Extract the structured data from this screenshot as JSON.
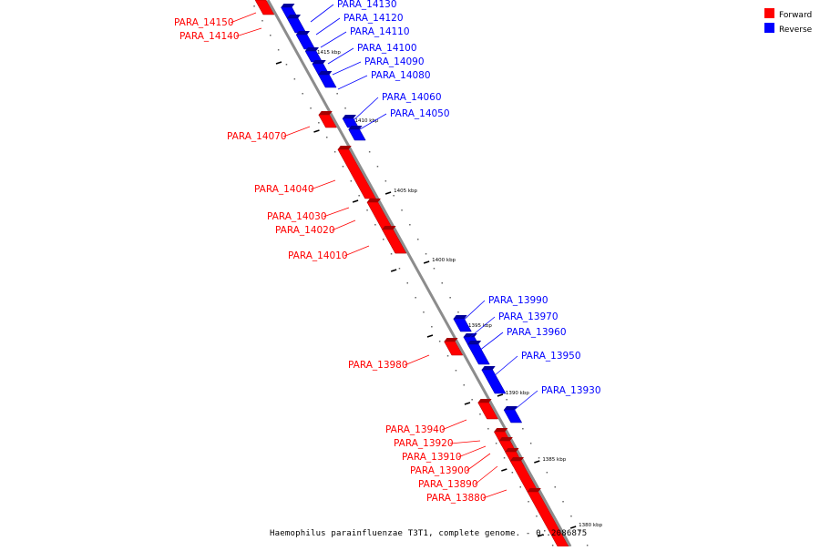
{
  "legend": {
    "forward": {
      "label": "Forward",
      "color": "#ff0000"
    },
    "reverse": {
      "label": "Reverse",
      "color": "#0000ff"
    }
  },
  "caption": "Haemophilus parainfluenzae T3T1, complete genome. - 0..2086875",
  "ticks": [
    {
      "label": "1415 kbp",
      "kbp": 1415
    },
    {
      "label": "1410 kbp",
      "kbp": 1410
    },
    {
      "label": "1405 kbp",
      "kbp": 1405
    },
    {
      "label": "1400 kbp",
      "kbp": 1400
    },
    {
      "label": "1395 kbp",
      "kbp": 1395
    },
    {
      "label": "1390 kbp",
      "kbp": 1390
    },
    {
      "label": "1385 kbp",
      "kbp": 1385
    },
    {
      "label": "1380 kbp",
      "kbp": 1380
    }
  ],
  "genes": [
    {
      "name": "PARA_14150",
      "strand": "forward"
    },
    {
      "name": "PARA_14140",
      "strand": "forward"
    },
    {
      "name": "PARA_14130",
      "strand": "reverse"
    },
    {
      "name": "PARA_14120",
      "strand": "reverse"
    },
    {
      "name": "PARA_14110",
      "strand": "reverse"
    },
    {
      "name": "PARA_14100",
      "strand": "reverse"
    },
    {
      "name": "PARA_14090",
      "strand": "reverse"
    },
    {
      "name": "PARA_14080",
      "strand": "reverse"
    },
    {
      "name": "PARA_14060",
      "strand": "reverse"
    },
    {
      "name": "PARA_14050",
      "strand": "reverse"
    },
    {
      "name": "PARA_14070",
      "strand": "forward"
    },
    {
      "name": "PARA_14040",
      "strand": "forward"
    },
    {
      "name": "PARA_14030",
      "strand": "forward"
    },
    {
      "name": "PARA_14020",
      "strand": "forward"
    },
    {
      "name": "PARA_14010",
      "strand": "forward"
    },
    {
      "name": "PARA_13990",
      "strand": "reverse"
    },
    {
      "name": "PARA_13970",
      "strand": "reverse"
    },
    {
      "name": "PARA_13960",
      "strand": "reverse"
    },
    {
      "name": "PARA_13950",
      "strand": "reverse"
    },
    {
      "name": "PARA_13930",
      "strand": "reverse"
    },
    {
      "name": "PARA_13980",
      "strand": "forward"
    },
    {
      "name": "PARA_13940",
      "strand": "forward"
    },
    {
      "name": "PARA_13920",
      "strand": "forward"
    },
    {
      "name": "PARA_13910",
      "strand": "forward"
    },
    {
      "name": "PARA_13900",
      "strand": "forward"
    },
    {
      "name": "PARA_13890",
      "strand": "forward"
    },
    {
      "name": "PARA_13880",
      "strand": "forward"
    }
  ]
}
